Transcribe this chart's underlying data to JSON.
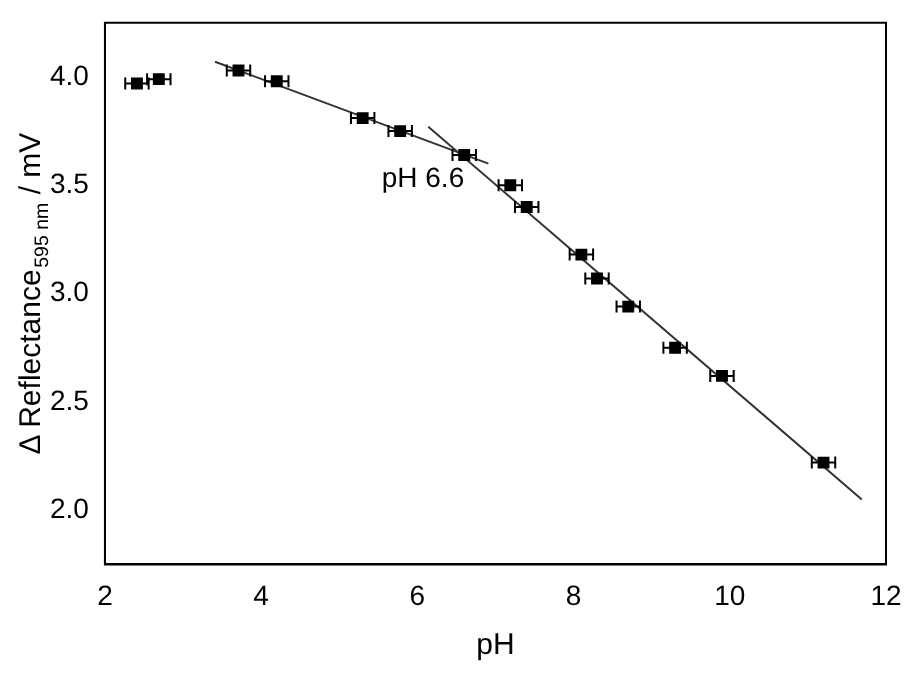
{
  "chart_data": {
    "type": "scatter",
    "xlabel": "pH",
    "ylabel": "Δ Reflectance$_{595 nm}$ / mV",
    "xlim": [
      2,
      12
    ],
    "xticks": [
      2,
      4,
      6,
      8,
      10,
      12
    ],
    "ylim": [
      1.75,
      4.25
    ],
    "yticks": [
      {
        "value": 2,
        "label": "2.0"
      },
      {
        "value": 2.5,
        "label": "2.5"
      },
      {
        "value": 3,
        "label": "3.0"
      },
      {
        "value": 3.5,
        "label": "3.5"
      },
      {
        "value": 4,
        "label": "4.0"
      }
    ],
    "grid": false,
    "legend": false,
    "series": [
      {
        "marker": "square",
        "color": "#000000",
        "x": [
          2.41,
          2.69,
          3.71,
          4.2,
          5.3,
          5.78,
          6.6,
          7.19,
          7.4,
          8.1,
          8.3,
          8.7,
          9.3,
          9.9,
          11.2
        ],
        "values": [
          3.97,
          3.99,
          4.03,
          3.98,
          3.81,
          3.75,
          3.64,
          3.5,
          3.4,
          3.18,
          3.07,
          2.94,
          2.75,
          2.62,
          2.22
        ],
        "xerrors": [
          0.15,
          0.15,
          0.15,
          0.15,
          0.15,
          0.15,
          0.15,
          0.15,
          0.15,
          0.15,
          0.15,
          0.15,
          0.15,
          0.15,
          0.15
        ]
      },
      {
        "type": "line",
        "color": "#333333",
        "x": [
          3.41,
          6.91
        ],
        "values": [
          4.07,
          3.6
        ]
      },
      {
        "type": "line",
        "color": "#333333",
        "x": [
          6.14,
          11.69
        ],
        "values": [
          3.77,
          2.05
        ]
      }
    ],
    "annotations": [
      {
        "text": "pH 6.6",
        "x": 6.6,
        "y": 3.64
      }
    ]
  }
}
